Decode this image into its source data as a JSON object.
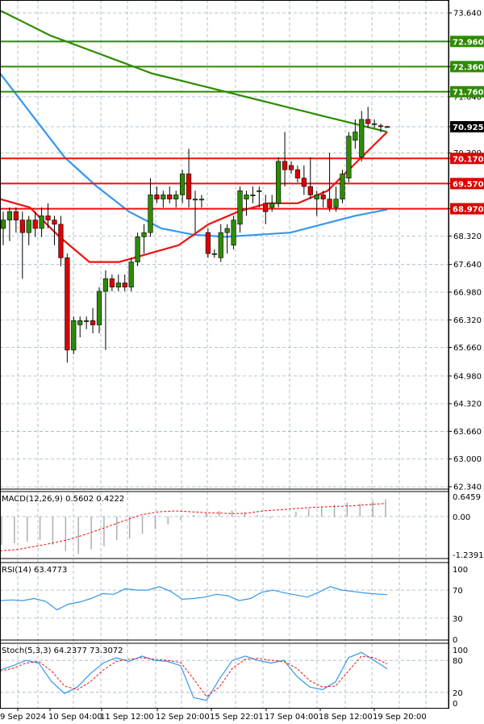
{
  "chart_data": [
    {
      "type": "candlestick",
      "panel": "price",
      "ylim": [
        62.34,
        74.0
      ],
      "ticks": [
        73.64,
        72.96,
        72.36,
        71.76,
        71.64,
        70.925,
        70.3,
        70.17,
        69.57,
        68.97,
        68.32,
        67.64,
        66.98,
        66.32,
        65.66,
        64.98,
        64.32,
        63.66,
        63.0,
        62.34
      ],
      "tick_labels": [
        "73.640",
        "72.960",
        "72.360",
        "71.760",
        "71.640",
        "70.925",
        "70.300",
        "70.170",
        "69.570",
        "68.970",
        "68.320",
        "67.640",
        "66.980",
        "66.320",
        "65.660",
        "64.980",
        "64.320",
        "63.660",
        "63.000",
        "62.340"
      ],
      "highlighted_labels": [
        {
          "value": 72.96,
          "label": "72.960",
          "color": "#2e8b00"
        },
        {
          "value": 72.36,
          "label": "72.360",
          "color": "#2e8b00"
        },
        {
          "value": 71.76,
          "label": "71.760",
          "color": "#2e8b00"
        },
        {
          "value": 70.17,
          "label": "70.170",
          "color": "#dd0000"
        },
        {
          "value": 69.57,
          "label": "69.570",
          "color": "#dd0000"
        },
        {
          "value": 68.97,
          "label": "68.970",
          "color": "#dd0000"
        },
        {
          "value": 70.925,
          "label": "70.925",
          "color": "#000000"
        }
      ],
      "resistance_levels": [
        72.96,
        72.36,
        71.76
      ],
      "support_levels": [
        70.17,
        69.57,
        68.97
      ],
      "candles": [
        {
          "o": 68.5,
          "h": 68.9,
          "l": 68.1,
          "c": 68.7
        },
        {
          "o": 68.7,
          "h": 69.0,
          "l": 68.2,
          "c": 68.9
        },
        {
          "o": 68.9,
          "h": 69.0,
          "l": 68.4,
          "c": 68.7
        },
        {
          "o": 68.7,
          "h": 68.9,
          "l": 67.3,
          "c": 68.4
        },
        {
          "o": 68.4,
          "h": 68.8,
          "l": 68.1,
          "c": 68.7
        },
        {
          "o": 68.7,
          "h": 68.9,
          "l": 68.3,
          "c": 68.5
        },
        {
          "o": 68.5,
          "h": 69.0,
          "l": 68.3,
          "c": 68.8
        },
        {
          "o": 68.8,
          "h": 69.1,
          "l": 68.5,
          "c": 68.7
        },
        {
          "o": 68.7,
          "h": 68.8,
          "l": 68.1,
          "c": 68.6
        },
        {
          "o": 68.6,
          "h": 68.8,
          "l": 67.6,
          "c": 67.8
        },
        {
          "o": 67.8,
          "h": 67.9,
          "l": 65.3,
          "c": 65.6
        },
        {
          "o": 65.6,
          "h": 66.4,
          "l": 65.5,
          "c": 66.3
        },
        {
          "o": 66.2,
          "h": 66.4,
          "l": 65.9,
          "c": 66.3
        },
        {
          "o": 66.3,
          "h": 66.4,
          "l": 66.1,
          "c": 66.3
        },
        {
          "o": 66.3,
          "h": 66.6,
          "l": 66.0,
          "c": 66.2
        },
        {
          "o": 66.2,
          "h": 67.1,
          "l": 66.0,
          "c": 67.0
        },
        {
          "o": 67.0,
          "h": 67.5,
          "l": 65.6,
          "c": 67.3
        },
        {
          "o": 67.3,
          "h": 67.4,
          "l": 67.0,
          "c": 67.1
        },
        {
          "o": 67.1,
          "h": 67.4,
          "l": 67.0,
          "c": 67.2
        },
        {
          "o": 67.2,
          "h": 67.4,
          "l": 67.0,
          "c": 67.1
        },
        {
          "o": 67.1,
          "h": 67.8,
          "l": 67.0,
          "c": 67.7
        },
        {
          "o": 67.7,
          "h": 68.4,
          "l": 67.6,
          "c": 68.3
        },
        {
          "o": 68.3,
          "h": 68.6,
          "l": 67.9,
          "c": 68.4
        },
        {
          "o": 68.4,
          "h": 69.7,
          "l": 68.3,
          "c": 69.3
        },
        {
          "o": 69.3,
          "h": 69.5,
          "l": 69.1,
          "c": 69.2
        },
        {
          "o": 69.2,
          "h": 69.4,
          "l": 69.0,
          "c": 69.3
        },
        {
          "o": 69.3,
          "h": 69.5,
          "l": 69.1,
          "c": 69.2
        },
        {
          "o": 69.2,
          "h": 69.4,
          "l": 69.0,
          "c": 69.3
        },
        {
          "o": 69.3,
          "h": 69.9,
          "l": 69.1,
          "c": 69.8
        },
        {
          "o": 69.8,
          "h": 70.4,
          "l": 69.0,
          "c": 69.2
        },
        {
          "o": 69.2,
          "h": 69.4,
          "l": 68.4,
          "c": 69.2
        },
        {
          "o": 69.2,
          "h": 69.3,
          "l": 69.0,
          "c": 69.2
        },
        {
          "o": 68.4,
          "h": 68.5,
          "l": 67.8,
          "c": 67.9
        },
        {
          "o": 67.9,
          "h": 68.0,
          "l": 67.8,
          "c": 67.9
        },
        {
          "o": 67.8,
          "h": 68.6,
          "l": 67.7,
          "c": 68.4
        },
        {
          "o": 68.4,
          "h": 68.6,
          "l": 67.9,
          "c": 68.5
        },
        {
          "o": 68.1,
          "h": 68.8,
          "l": 68.0,
          "c": 68.7
        },
        {
          "o": 68.6,
          "h": 69.5,
          "l": 68.4,
          "c": 69.4
        },
        {
          "o": 69.2,
          "h": 69.4,
          "l": 68.8,
          "c": 69.3
        },
        {
          "o": 69.3,
          "h": 69.5,
          "l": 69.1,
          "c": 69.3
        },
        {
          "o": 69.4,
          "h": 69.5,
          "l": 69.0,
          "c": 69.4
        },
        {
          "o": 69.1,
          "h": 69.3,
          "l": 68.6,
          "c": 68.9
        },
        {
          "o": 69.0,
          "h": 69.3,
          "l": 68.9,
          "c": 69.1
        },
        {
          "o": 69.1,
          "h": 70.2,
          "l": 69.0,
          "c": 70.1
        },
        {
          "o": 70.1,
          "h": 70.8,
          "l": 69.5,
          "c": 69.9
        },
        {
          "o": 70.0,
          "h": 70.1,
          "l": 69.8,
          "c": 69.9
        },
        {
          "o": 69.9,
          "h": 70.0,
          "l": 69.6,
          "c": 69.7
        },
        {
          "o": 69.7,
          "h": 70.0,
          "l": 69.3,
          "c": 69.5
        },
        {
          "o": 69.5,
          "h": 70.2,
          "l": 69.2,
          "c": 69.3
        },
        {
          "o": 69.2,
          "h": 69.4,
          "l": 68.8,
          "c": 69.3
        },
        {
          "o": 69.3,
          "h": 69.4,
          "l": 69.0,
          "c": 69.2
        },
        {
          "o": 69.2,
          "h": 70.3,
          "l": 68.9,
          "c": 69.0
        },
        {
          "o": 69.0,
          "h": 69.5,
          "l": 68.9,
          "c": 69.2
        },
        {
          "o": 69.2,
          "h": 69.9,
          "l": 69.1,
          "c": 69.8
        },
        {
          "o": 69.7,
          "h": 70.8,
          "l": 69.6,
          "c": 70.7
        },
        {
          "o": 70.6,
          "h": 71.1,
          "l": 70.4,
          "c": 70.8
        },
        {
          "o": 70.2,
          "h": 71.3,
          "l": 70.1,
          "c": 71.1
        },
        {
          "o": 71.1,
          "h": 71.4,
          "l": 70.9,
          "c": 71.0
        },
        {
          "o": 71.0,
          "h": 71.1,
          "l": 70.9,
          "c": 71.0
        },
        {
          "o": 70.95,
          "h": 71.0,
          "l": 70.8,
          "c": 70.93
        },
        {
          "o": 70.93,
          "h": 70.95,
          "l": 70.9,
          "c": 70.925
        }
      ],
      "series": [
        {
          "name": "",
          "color": "#2e8b00",
          "values": [
            73.7,
            73.5,
            73.3,
            73.1,
            72.95,
            72.8,
            72.65,
            72.5,
            72.35,
            72.2,
            72.1,
            72.0,
            71.9,
            71.8,
            71.7,
            71.6,
            71.5,
            71.4,
            71.3,
            71.2,
            71.1,
            71.0,
            70.9,
            70.8
          ]
        },
        {
          "name": "",
          "color": "#3399ee",
          "values": [
            72.2,
            71.2,
            70.2,
            69.5,
            68.9,
            68.5,
            68.35,
            68.3,
            68.35,
            68.4,
            68.6,
            68.8,
            68.95
          ]
        },
        {
          "name": "",
          "color": "#ee1111",
          "values": [
            69.2,
            69.0,
            68.3,
            67.7,
            67.7,
            67.9,
            68.1,
            68.6,
            68.9,
            69.1,
            69.1,
            69.4,
            70.1,
            70.8
          ]
        }
      ]
    },
    {
      "type": "histogram+line",
      "panel": "macd",
      "title": "MACD(12,26,9) 0.5602 0.4222",
      "ylim": [
        -1.2391,
        0.6459
      ],
      "tick_labels": [
        "0.6459",
        "0.00",
        "-1.2391"
      ],
      "histogram": [
        -0.9,
        -0.85,
        -0.8,
        -0.75,
        -0.9,
        -1.1,
        -1.2,
        -1.05,
        -0.95,
        -0.75,
        -0.7,
        -0.55,
        -0.4,
        -0.25,
        -0.1,
        0.05,
        0.12,
        0.18,
        0.2,
        0.15,
        0.05,
        -0.05,
        0.0,
        0.15,
        0.25,
        0.3,
        0.38,
        0.45,
        0.42,
        0.5,
        0.56
      ],
      "signal": [
        -1.1,
        -1.05,
        -0.95,
        -0.85,
        -0.72,
        -0.55,
        -0.35,
        -0.15,
        0.05,
        0.15,
        0.18,
        0.15,
        0.12,
        0.1,
        0.1,
        0.18,
        0.22,
        0.26,
        0.3,
        0.32,
        0.34,
        0.38,
        0.42
      ]
    },
    {
      "type": "line",
      "panel": "rsi",
      "title": "RSI(14) 63.4773",
      "ylim": [
        0,
        100
      ],
      "tick_labels": [
        "100",
        "70",
        "30",
        "0"
      ],
      "values": [
        55,
        56,
        55,
        58,
        54,
        42,
        50,
        53,
        58,
        65,
        64,
        72,
        70,
        70,
        75,
        68,
        57,
        58,
        60,
        64,
        62,
        55,
        58,
        67,
        70,
        66,
        63,
        60,
        67,
        75,
        70,
        68,
        66,
        64.5,
        63.5
      ]
    },
    {
      "type": "line",
      "panel": "stochastic",
      "title": "Stoch(5,3,3) 64.2377 73.3072",
      "ylim": [
        0,
        100
      ],
      "tick_labels": [
        "100",
        "80",
        "20",
        "0"
      ],
      "k": [
        62,
        70,
        80,
        75,
        40,
        18,
        30,
        55,
        75,
        85,
        78,
        88,
        80,
        78,
        70,
        10,
        5,
        45,
        80,
        88,
        80,
        75,
        80,
        50,
        30,
        25,
        40,
        85,
        95,
        80,
        64.2
      ],
      "d": [
        60,
        65,
        75,
        78,
        60,
        32,
        25,
        40,
        62,
        78,
        82,
        85,
        82,
        80,
        76,
        45,
        12,
        30,
        65,
        82,
        84,
        80,
        78,
        65,
        42,
        30,
        32,
        60,
        88,
        85,
        73.3
      ]
    }
  ],
  "x_axis": {
    "tick_labels": [
      "9 Sep 2024",
      "10 Sep 04:00",
      "11 Sep 12:00",
      "12 Sep 20:00",
      "15 Sep 22:01",
      "17 Sep 04:00",
      "18 Sep 12:00",
      "19 Sep 20:00"
    ]
  },
  "colors": {
    "bull": "#2e8b00",
    "bear": "#dd0000",
    "grid": "#9fb3c8",
    "resistance": "#2e8b00",
    "support": "#ee1111",
    "sma_long": "#2e8b00",
    "sma_mid": "#3399ee",
    "ema_short": "#ee1111",
    "rsi": "#3399ee",
    "stoch_k": "#3399ee",
    "stoch_d": "#ee1111"
  }
}
